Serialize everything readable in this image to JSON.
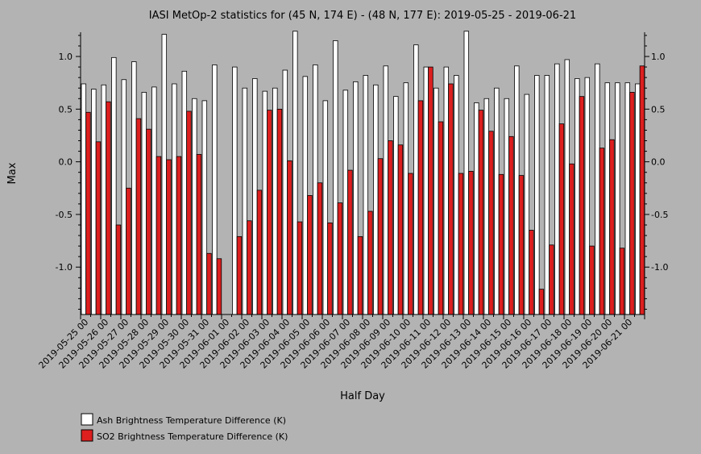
{
  "chart_data": {
    "type": "bar",
    "title": "IASI MetOp-2 statistics for (45 N, 174 E) - (48 N, 177 E): 2019-05-25 - 2019-06-21",
    "xlabel": "Half Day",
    "ylabel": "Max",
    "ylim": [
      -1.45,
      1.23
    ],
    "yticks": [
      "1.0",
      "0.5",
      "0.0",
      "-0.5",
      "-1.0"
    ],
    "ytick_values": [
      1.0,
      0.5,
      0.0,
      -0.5,
      -1.0
    ],
    "x_tick_labels": [
      "2019-05-25 00",
      "2019-05-26 00",
      "2019-05-27 00",
      "2019-05-28 00",
      "2019-05-29 00",
      "2019-05-30 00",
      "2019-05-31 00",
      "2019-06-01 00",
      "2019-06-02 00",
      "2019-06-03 00",
      "2019-06-04 00",
      "2019-06-05 00",
      "2019-06-06 00",
      "2019-06-07 00",
      "2019-06-08 00",
      "2019-06-09 00",
      "2019-06-10 00",
      "2019-06-11 00",
      "2019-06-12 00",
      "2019-06-13 00",
      "2019-06-14 00",
      "2019-06-15 00",
      "2019-06-16 00",
      "2019-06-17 00",
      "2019-06-18 00",
      "2019-06-19 00",
      "2019-06-20 00",
      "2019-06-21 00"
    ],
    "legend": "bottom-left",
    "grid": false,
    "series": [
      {
        "name": "Ash Brightness Temperature Difference (K)",
        "color": "#ffffff",
        "values": [
          0.74,
          0.69,
          0.73,
          0.99,
          0.78,
          0.95,
          0.66,
          0.71,
          1.21,
          0.74,
          0.86,
          0.6,
          0.58,
          0.92,
          null,
          0.9,
          0.7,
          0.79,
          0.67,
          0.7,
          0.87,
          1.24,
          0.81,
          0.92,
          0.58,
          1.15,
          0.68,
          0.76,
          0.82,
          0.73,
          0.91,
          0.62,
          0.75,
          1.11,
          0.9,
          0.7,
          0.9,
          0.82,
          1.24,
          0.56,
          0.6,
          0.7,
          0.6,
          0.91,
          0.64,
          0.82,
          0.82,
          0.93,
          0.97,
          0.79,
          0.8,
          0.93,
          0.75,
          0.75,
          0.75,
          0.74
        ]
      },
      {
        "name": "SO2 Brightness Temperature Difference (K)",
        "color": "#dd1f1f",
        "values": [
          0.47,
          0.19,
          0.57,
          -0.6,
          -0.25,
          0.41,
          0.31,
          0.05,
          0.02,
          0.05,
          0.48,
          0.07,
          -0.87,
          -0.92,
          null,
          -0.71,
          -0.56,
          -0.27,
          0.49,
          0.5,
          0.01,
          -0.57,
          -0.32,
          -0.2,
          -0.58,
          -0.39,
          -0.08,
          -0.71,
          -0.47,
          0.03,
          0.2,
          0.16,
          -0.11,
          0.58,
          0.9,
          0.38,
          0.74,
          -0.11,
          -0.09,
          0.49,
          0.29,
          -0.12,
          0.24,
          -0.13,
          -0.65,
          -1.21,
          -0.79,
          0.36,
          -0.02,
          0.62,
          -0.8,
          0.13,
          0.21,
          -0.82,
          0.66,
          0.91
        ]
      }
    ]
  }
}
